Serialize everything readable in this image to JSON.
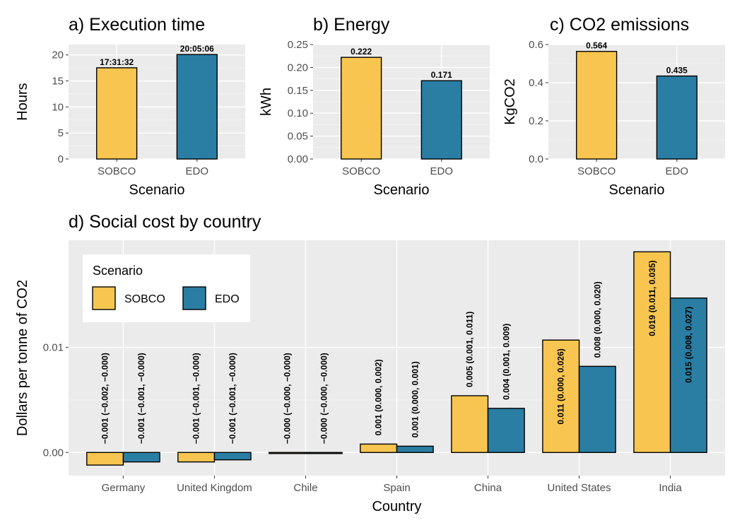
{
  "colors": {
    "SOBCO": "#f8c650",
    "EDO": "#2a7ea3",
    "panel_bg": "#ebebeb",
    "grid_major": "#ffffff",
    "bar_stroke": "#000000"
  },
  "chart_data": [
    {
      "type": "bar",
      "title": "a) Execution time",
      "xlabel": "Scenario",
      "ylabel": "Hours",
      "categories": [
        "SOBCO",
        "EDO"
      ],
      "values": [
        17.53,
        20.08
      ],
      "labels": [
        "17:31:32",
        "20:05:06"
      ],
      "ylim": [
        0,
        22
      ],
      "yticks": [
        0,
        5,
        10,
        15,
        20
      ],
      "ytick_labels": [
        "0",
        "5",
        "10",
        "15",
        "20"
      ]
    },
    {
      "type": "bar",
      "title": "b) Energy",
      "xlabel": "Scenario",
      "ylabel": "kWh",
      "categories": [
        "SOBCO",
        "EDO"
      ],
      "values": [
        0.222,
        0.171
      ],
      "labels": [
        "0.222",
        "0.171"
      ],
      "ylim": [
        0,
        0.25
      ],
      "yticks": [
        0,
        0.05,
        0.1,
        0.15,
        0.2,
        0.25
      ],
      "ytick_labels": [
        "0.00",
        "0.05",
        "0.10",
        "0.15",
        "0.20",
        "0.25"
      ]
    },
    {
      "type": "bar",
      "title": "c) CO2 emissions",
      "xlabel": "Scenario",
      "ylabel": "KgCO2",
      "categories": [
        "SOBCO",
        "EDO"
      ],
      "values": [
        0.564,
        0.435
      ],
      "labels": [
        "0.564",
        "0.435"
      ],
      "ylim": [
        0,
        0.6
      ],
      "yticks": [
        0,
        0.2,
        0.4,
        0.6
      ],
      "ytick_labels": [
        "0.0",
        "0.2",
        "0.4",
        "0.6"
      ]
    },
    {
      "type": "bar",
      "title": "d) Social cost by country",
      "xlabel": "Country",
      "ylabel": "Dollars per tonne of CO2",
      "categories": [
        "Germany",
        "United Kingdom",
        "Chile",
        "Spain",
        "China",
        "United States",
        "India"
      ],
      "series": [
        {
          "name": "SOBCO",
          "values": [
            -0.0012,
            -0.0009,
            -0.0001,
            0.0008,
            0.0054,
            0.0107,
            0.0191
          ],
          "labels": [
            "−0.001 (−0.002, −0.000)",
            "−0.001 (−0.001, −0.000)",
            "−0.000 (−0.000, −0.000)",
            "0.001 (0.000, 0.002)",
            "0.005 (0.001, 0.011)",
            "0.011 (0.000, 0.026)",
            "0.019 (0.011, 0.035)"
          ]
        },
        {
          "name": "EDO",
          "values": [
            -0.0009,
            -0.0007,
            -0.0001,
            0.0006,
            0.0042,
            0.0082,
            0.0147
          ],
          "labels": [
            "−0.001 (−0.001, −0.000)",
            "−0.001 (−0.001, −0.000)",
            "−0.000 (−0.000, −0.000)",
            "0.001 (0.000, 0.001)",
            "0.004 (0.001, 0.009)",
            "0.008 (0.000, 0.020)",
            "0.015 (0.008, 0.027)"
          ]
        }
      ],
      "ylim": [
        -0.0022,
        0.0202
      ],
      "yticks": [
        0,
        0.01
      ],
      "ytick_labels": [
        "0.00",
        "0.01"
      ],
      "legend": {
        "title": "Scenario",
        "position": "top-left"
      }
    }
  ]
}
